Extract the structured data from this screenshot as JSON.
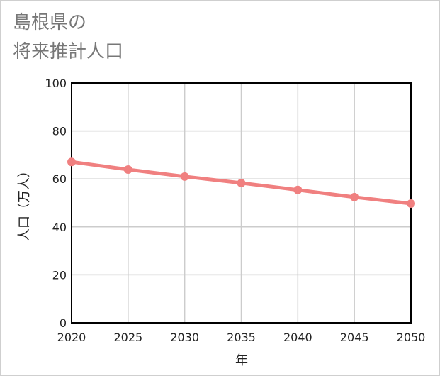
{
  "chart_data": {
    "type": "line",
    "title_line1": "島根県の",
    "title_line2": "将来推計人口",
    "xlabel": "年",
    "ylabel": "人口（万人）",
    "x": [
      2020,
      2025,
      2030,
      2035,
      2040,
      2045,
      2050
    ],
    "x_tick_labels": [
      "2020",
      "2025",
      "2030",
      "2035",
      "2040",
      "2045",
      "2050"
    ],
    "y_tick_labels": [
      "0",
      "20",
      "40",
      "60",
      "80",
      "100"
    ],
    "y_ticks": [
      0,
      20,
      40,
      60,
      80,
      100
    ],
    "ylim": [
      0,
      100
    ],
    "xlim": [
      2020,
      2050
    ],
    "grid": true,
    "series": [
      {
        "name": "人口",
        "color": "#f08080",
        "values": [
          67.1,
          63.9,
          61.0,
          58.3,
          55.4,
          52.4,
          49.7
        ]
      }
    ]
  }
}
